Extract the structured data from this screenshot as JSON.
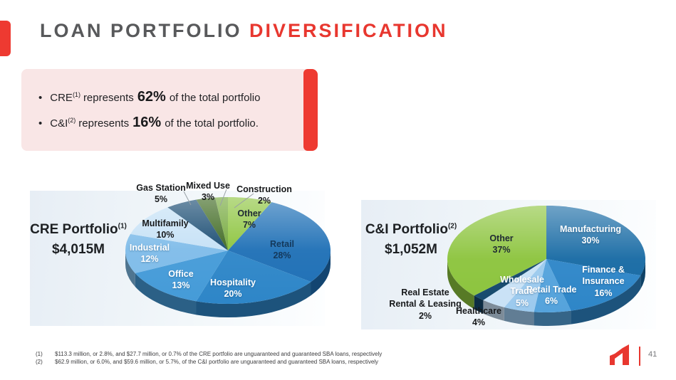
{
  "header": {
    "title_gray": "LOAN PORTFOLIO",
    "title_red": "DIVERSIFICATION"
  },
  "callout": {
    "bullets": [
      {
        "lead": "CRE",
        "sup": "(1)",
        "mid": "represents",
        "big": "62%",
        "tail": "of the total portfolio"
      },
      {
        "lead": "C&I",
        "sup": "(2)",
        "mid": "represents",
        "big": "16%",
        "tail": "of the total portfolio."
      }
    ]
  },
  "chart_data": [
    {
      "type": "pie",
      "title": "CRE Portfolio",
      "title_sup": "(1)",
      "subtitle": "$4,015M",
      "style": "3d-pie",
      "start": "12-oclock",
      "direction": "clockwise",
      "slices": [
        {
          "label": "Other",
          "pct": 7,
          "color": "#8cc43d"
        },
        {
          "label": "Retail",
          "pct": 28,
          "color": "#1f70b6"
        },
        {
          "label": "Hospitality",
          "pct": 20,
          "color": "#2e86c8"
        },
        {
          "label": "Office",
          "pct": 13,
          "color": "#459bd8"
        },
        {
          "label": "Industrial",
          "pct": 12,
          "color": "#7fbce9"
        },
        {
          "label": "Multifamily",
          "pct": 10,
          "color": "#c5e1f6"
        },
        {
          "label": "Gas Station",
          "pct": 5,
          "color": "#174a71"
        },
        {
          "label": "Mixed Use",
          "pct": 3,
          "color": "#3c671e"
        },
        {
          "label": "Construction",
          "pct": 2,
          "color": "#72a739"
        }
      ]
    },
    {
      "type": "pie",
      "title": "C&I Portfolio",
      "title_sup": "(2)",
      "subtitle": "$1,052M",
      "style": "3d-pie",
      "start": "12-oclock",
      "direction": "clockwise",
      "slices": [
        {
          "label": "Manufacturing",
          "pct": 30,
          "color": "#176aa4"
        },
        {
          "label": "Finance & Insurance",
          "pct": 16,
          "color": "#2e86c8"
        },
        {
          "label": "Retail Trade",
          "pct": 6,
          "color": "#55a3dc"
        },
        {
          "label": "Wholesale Trade",
          "pct": 5,
          "color": "#9ccaee"
        },
        {
          "label": "Healthcare",
          "pct": 4,
          "color": "#c9e2f6"
        },
        {
          "label": "Real Estate Rental & Leasing",
          "pct": 2,
          "color": "#15496d"
        },
        {
          "label": "Other",
          "pct": 37,
          "color": "#8cc43d"
        }
      ]
    }
  ],
  "footnotes": [
    {
      "num": "(1)",
      "text": "$113.3 million, or 2.8%, and $27.7 million, or 0.7% of the CRE portfolio are unguaranteed and guaranteed SBA loans, respectively"
    },
    {
      "num": "(2)",
      "text": "$62.9 million, or 6.0%, and $59.6 million, or 5.7%, of the C&I portfolio are unguaranteed and guaranteed SBA loans, respectively"
    }
  ],
  "footer": {
    "page_number": "41"
  },
  "colors": {
    "accent_red": "#e8372f",
    "title_gray": "#58595b",
    "callout_bg": "#f9e6e6",
    "panel_gradient_start": "#e7eef5"
  }
}
